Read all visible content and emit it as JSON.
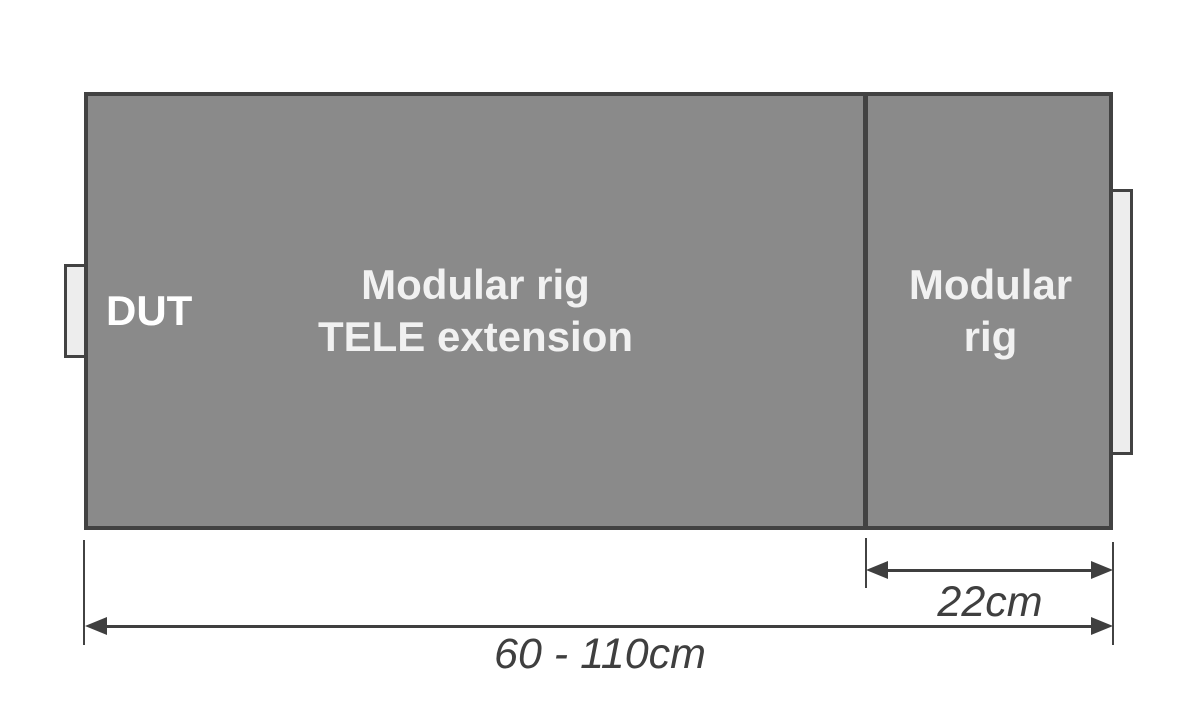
{
  "diagram": {
    "dut_label": "DUT",
    "tele_extension": {
      "line1": "Modular rig",
      "line2": "TELE extension"
    },
    "modular_rig": {
      "line1": "Modular",
      "line2": "rig"
    },
    "dimensions": {
      "rig_width": "22cm",
      "total_width": "60 - 110cm"
    },
    "colors": {
      "box_fill": "#8a8a8a",
      "box_border": "#424242",
      "tab_fill": "#ededed",
      "label_text": "#f1f1f1",
      "dut_text": "#ffffff",
      "dimension": "#3f3f3f",
      "background": "#ffffff"
    }
  }
}
